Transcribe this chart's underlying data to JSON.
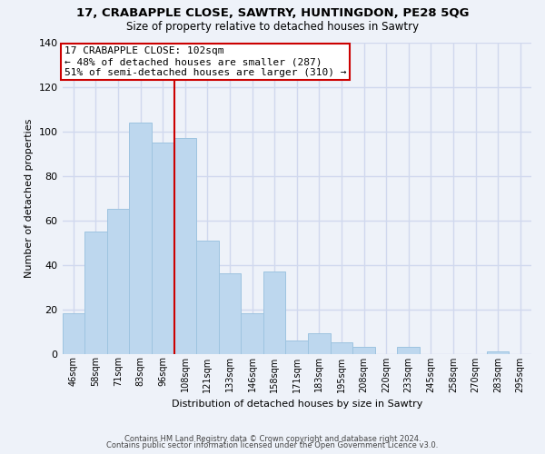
{
  "title": "17, CRABAPPLE CLOSE, SAWTRY, HUNTINGDON, PE28 5QG",
  "subtitle": "Size of property relative to detached houses in Sawtry",
  "xlabel": "Distribution of detached houses by size in Sawtry",
  "ylabel": "Number of detached properties",
  "bar_labels": [
    "46sqm",
    "58sqm",
    "71sqm",
    "83sqm",
    "96sqm",
    "108sqm",
    "121sqm",
    "133sqm",
    "146sqm",
    "158sqm",
    "171sqm",
    "183sqm",
    "195sqm",
    "208sqm",
    "220sqm",
    "233sqm",
    "245sqm",
    "258sqm",
    "270sqm",
    "283sqm",
    "295sqm"
  ],
  "bar_values": [
    18,
    55,
    65,
    104,
    95,
    97,
    51,
    36,
    18,
    37,
    6,
    9,
    5,
    3,
    0,
    3,
    0,
    0,
    0,
    1,
    0
  ],
  "bar_color": "#bdd7ee",
  "bar_edge_color": "#9ec4e0",
  "annotation_title": "17 CRABAPPLE CLOSE: 102sqm",
  "annotation_line1": "← 48% of detached houses are smaller (287)",
  "annotation_line2": "51% of semi-detached houses are larger (310) →",
  "annotation_box_color": "#ffffff",
  "annotation_box_edge_color": "#cc0000",
  "ref_line_color": "#cc0000",
  "ref_line_x": 4.5,
  "ylim": [
    0,
    140
  ],
  "yticks": [
    0,
    20,
    40,
    60,
    80,
    100,
    120,
    140
  ],
  "footer1": "Contains HM Land Registry data © Crown copyright and database right 2024.",
  "footer2": "Contains public sector information licensed under the Open Government Licence v3.0.",
  "bg_color": "#eef2f9",
  "grid_color": "#d0d8ee"
}
